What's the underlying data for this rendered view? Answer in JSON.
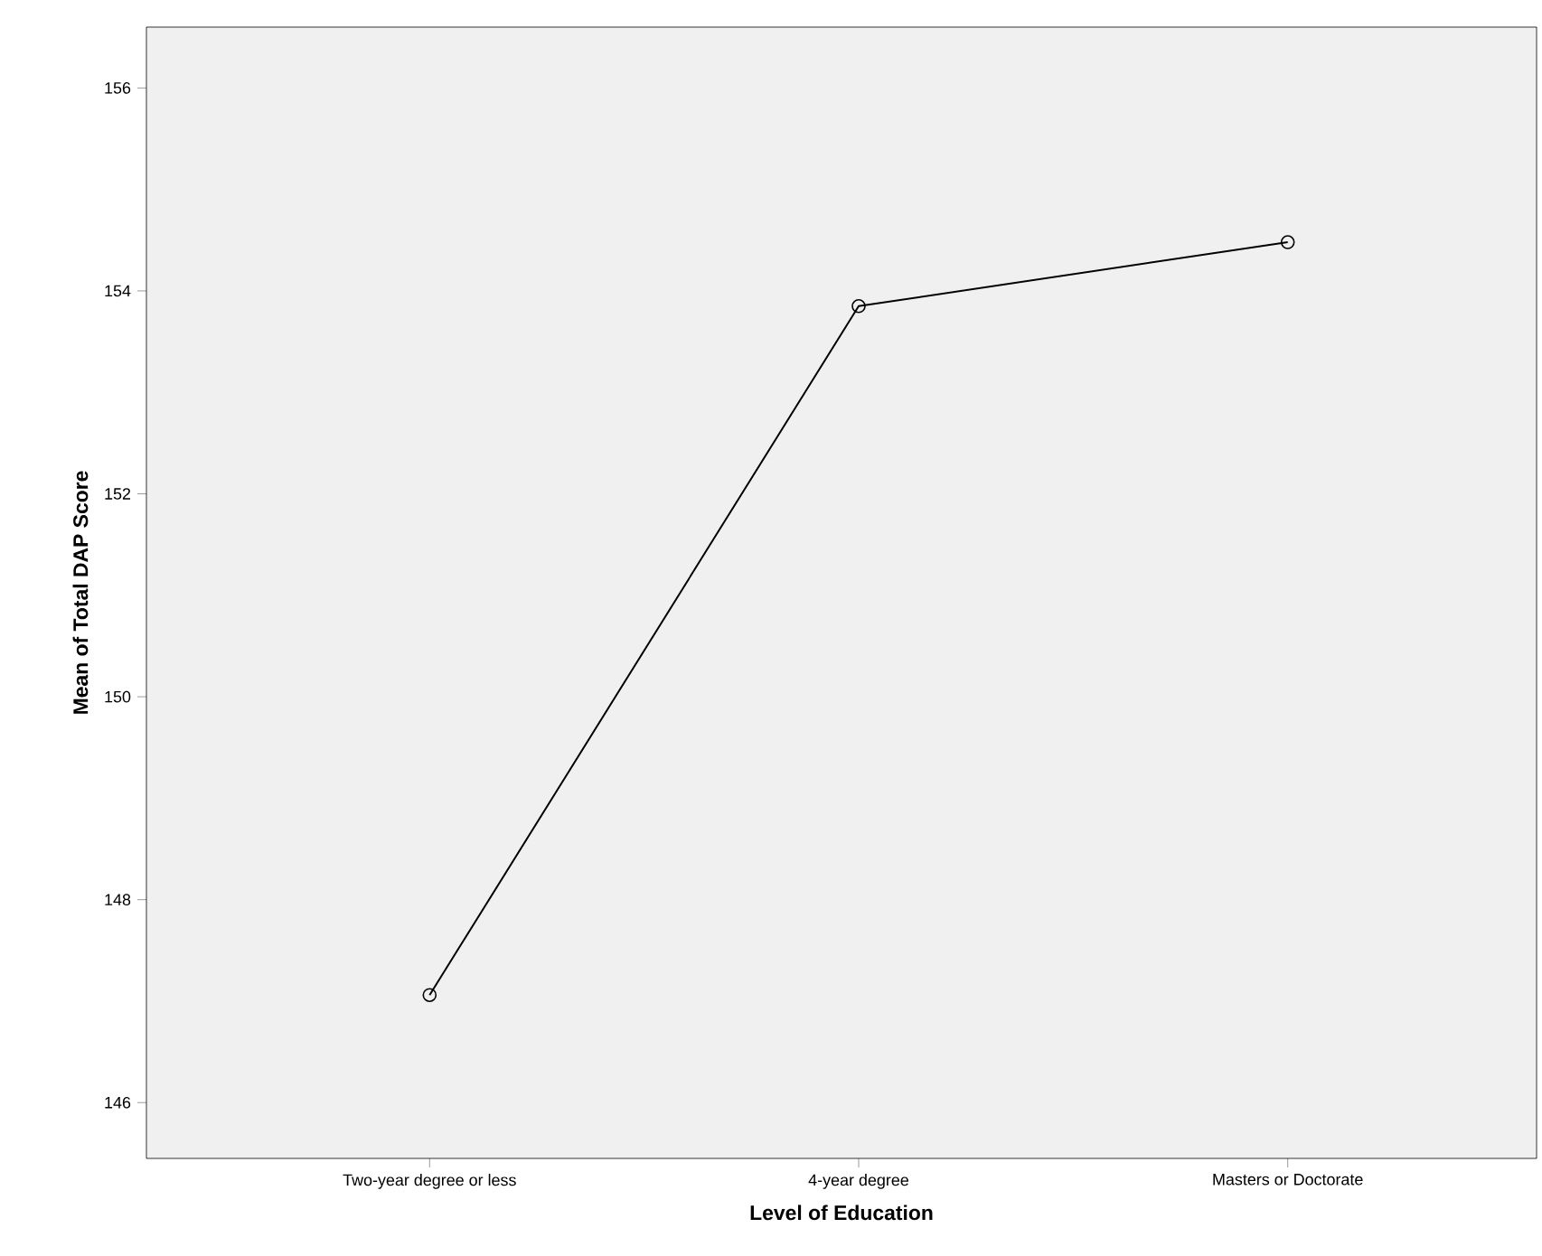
{
  "chart_data": {
    "type": "line",
    "xlabel": "Level of Education",
    "ylabel": "Mean of Total DAP Score",
    "categories": [
      "Two-year degree or less",
      "4-year degree",
      "Masters or Doctorate"
    ],
    "values": [
      147.06,
      153.85,
      154.48
    ],
    "color": "#000000",
    "marker": "circle",
    "line_style": "solid",
    "ylim": [
      145.45,
      156.6
    ],
    "yticks": [
      146,
      148,
      150,
      152,
      154,
      156
    ]
  }
}
